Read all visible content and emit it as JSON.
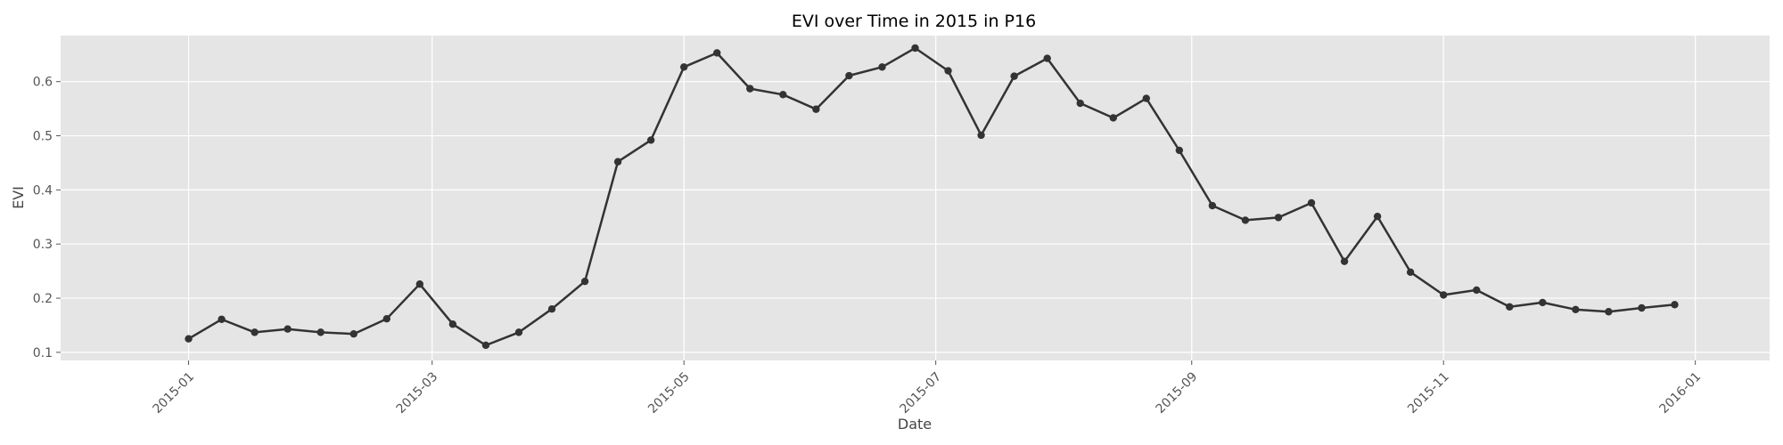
{
  "chart_data": {
    "type": "line",
    "title": "EVI over Time in 2015 in P16",
    "xlabel": "Date",
    "ylabel": "EVI",
    "xlim": [
      "2014-12-01",
      "2016-01-19"
    ],
    "ylim": [
      0.085,
      0.685
    ],
    "x_ticks": [
      "2015-01",
      "2015-03",
      "2015-05",
      "2015-07",
      "2015-09",
      "2015-11",
      "2016-01"
    ],
    "y_ticks": [
      0.1,
      0.2,
      0.3,
      0.4,
      0.5,
      0.6
    ],
    "grid": true,
    "line_color": "#333333",
    "background_color": "#e5e5e5",
    "series": [
      {
        "x": [
          "2015-01-01",
          "2015-01-09",
          "2015-01-17",
          "2015-01-25",
          "2015-02-02",
          "2015-02-10",
          "2015-02-18",
          "2015-02-26",
          "2015-03-06",
          "2015-03-14",
          "2015-03-22",
          "2015-03-30",
          "2015-04-07",
          "2015-04-15",
          "2015-04-23",
          "2015-05-01",
          "2015-05-09",
          "2015-05-17",
          "2015-05-25",
          "2015-06-02",
          "2015-06-10",
          "2015-06-18",
          "2015-06-26",
          "2015-07-04",
          "2015-07-12",
          "2015-07-20",
          "2015-07-28",
          "2015-08-05",
          "2015-08-13",
          "2015-08-21",
          "2015-08-29",
          "2015-09-06",
          "2015-09-14",
          "2015-09-22",
          "2015-09-30",
          "2015-10-08",
          "2015-10-16",
          "2015-10-24",
          "2015-11-01",
          "2015-11-09",
          "2015-11-17",
          "2015-11-25",
          "2015-12-03",
          "2015-12-11",
          "2015-12-19",
          "2015-12-27"
        ],
        "y": [
          0.125,
          0.161,
          0.137,
          0.143,
          0.137,
          0.134,
          0.162,
          0.226,
          0.152,
          0.113,
          0.137,
          0.18,
          0.231,
          0.452,
          0.492,
          0.627,
          0.653,
          0.587,
          0.576,
          0.549,
          0.611,
          0.627,
          0.662,
          0.62,
          0.501,
          0.61,
          0.643,
          0.56,
          0.533,
          0.569,
          0.473,
          0.371,
          0.344,
          0.349,
          0.376,
          0.268,
          0.351,
          0.248,
          0.206,
          0.215,
          0.184,
          0.192,
          0.179,
          0.175,
          0.182,
          0.188
        ]
      }
    ]
  }
}
